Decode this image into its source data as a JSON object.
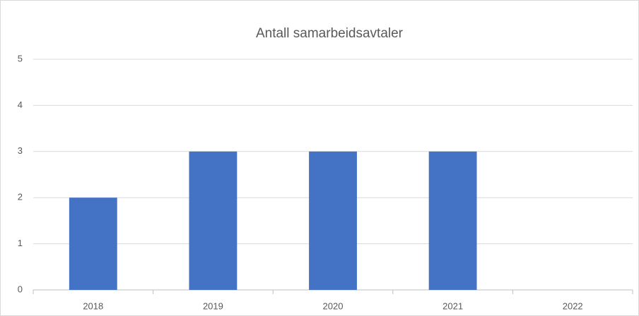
{
  "chart_data": {
    "type": "bar",
    "title": "Antall samarbeidsavtaler",
    "categories": [
      "2018",
      "2019",
      "2020",
      "2021",
      "2022"
    ],
    "values": [
      2,
      3,
      3,
      3,
      0
    ],
    "color": "#4472c4",
    "ylim": [
      0,
      5
    ],
    "yticks": [
      0,
      1,
      2,
      3,
      4,
      5
    ],
    "grid": true
  }
}
